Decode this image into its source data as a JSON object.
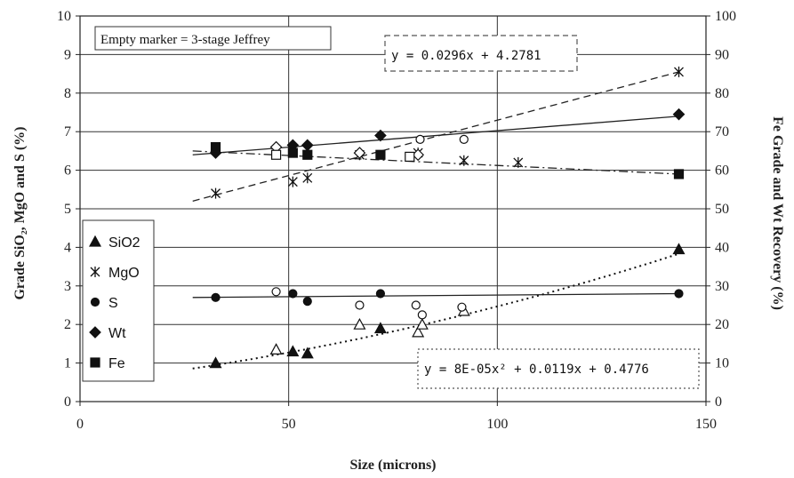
{
  "chart_data": {
    "type": "scatter",
    "title": "",
    "xlabel": "Size (microns)",
    "ylabel_left": "Grade SiO₂, MgO and S (%)",
    "ylabel_right": "Fe Grade and Wt Recovery (%)",
    "xlim": [
      0,
      150
    ],
    "ylim_left": [
      0,
      10
    ],
    "ylim_right": [
      0,
      100
    ],
    "x_ticks": [
      "0",
      "50",
      "100",
      "150"
    ],
    "y_left_ticks": [
      "0",
      "1",
      "2",
      "3",
      "4",
      "5",
      "6",
      "7",
      "8",
      "9",
      "10"
    ],
    "y_right_ticks": [
      "0",
      "10",
      "20",
      "30",
      "40",
      "50",
      "60",
      "70",
      "80",
      "90",
      "100"
    ],
    "grid": true,
    "note": "Empty marker = 3-stage Jeffrey",
    "equations": [
      "y = 0.0296x + 4.2781",
      "y = 8E-05x² + 0.0119x + 0.4776"
    ],
    "legend_position": "left",
    "series": [
      {
        "name": "SiO2",
        "marker": "triangle",
        "axis": "left",
        "points": [
          [
            32.5,
            1.0
          ],
          [
            51,
            1.3
          ],
          [
            54.5,
            1.25
          ],
          [
            72,
            1.9
          ],
          [
            143.5,
            3.95
          ]
        ],
        "open_points": [
          [
            47,
            1.35
          ],
          [
            67,
            2.0
          ],
          [
            81,
            1.8
          ],
          [
            82,
            2.0
          ],
          [
            92,
            2.35
          ]
        ]
      },
      {
        "name": "MgO",
        "marker": "star",
        "axis": "left",
        "points": [
          [
            32.5,
            5.4
          ],
          [
            51,
            5.7
          ],
          [
            54.5,
            5.8
          ],
          [
            143.5,
            8.55
          ]
        ],
        "open_points": [
          [
            67,
            6.4
          ],
          [
            81,
            6.45
          ],
          [
            92,
            6.25
          ],
          [
            105,
            6.2
          ]
        ]
      },
      {
        "name": "S",
        "marker": "circle",
        "axis": "left",
        "points": [
          [
            32.5,
            2.7
          ],
          [
            51,
            2.8
          ],
          [
            54.5,
            2.6
          ],
          [
            72,
            2.8
          ],
          [
            143.5,
            2.8
          ]
        ],
        "open_points": [
          [
            47,
            2.85
          ],
          [
            67,
            2.5
          ],
          [
            80.5,
            2.5
          ],
          [
            82,
            2.25
          ],
          [
            91.5,
            2.45
          ],
          [
            81.5,
            6.8
          ],
          [
            92,
            6.8
          ]
        ]
      },
      {
        "name": "Wt",
        "marker": "diamond",
        "axis": "right",
        "points": [
          [
            32.5,
            64.5
          ],
          [
            51,
            66.5
          ],
          [
            54.5,
            66.5
          ],
          [
            72,
            69
          ],
          [
            143.5,
            74.5
          ]
        ],
        "open_points": [
          [
            47,
            66
          ],
          [
            67,
            64.5
          ],
          [
            81,
            64
          ]
        ]
      },
      {
        "name": "Fe",
        "marker": "square",
        "axis": "right",
        "points": [
          [
            32.5,
            66
          ],
          [
            51,
            64.5
          ],
          [
            54.5,
            64
          ],
          [
            72,
            64
          ],
          [
            143.5,
            59
          ]
        ],
        "open_points": [
          [
            47,
            64
          ],
          [
            79,
            63.5
          ]
        ]
      }
    ],
    "trendlines": [
      {
        "style": "dashed",
        "from": [
          27,
          5.2
        ],
        "to": [
          143.5,
          8.55
        ]
      },
      {
        "style": "dashdot",
        "from": [
          27,
          6.5
        ],
        "to": [
          143.5,
          5.9
        ]
      },
      {
        "style": "solid",
        "from": [
          27,
          6.4
        ],
        "to": [
          143.5,
          7.4
        ]
      },
      {
        "style": "solid",
        "from": [
          27,
          2.7
        ],
        "to": [
          143.5,
          2.8
        ]
      },
      {
        "style": "dotted-poly",
        "coeffs": [
          8e-05,
          0.0119,
          0.4776
        ],
        "range": [
          27,
          143.5
        ]
      }
    ]
  }
}
